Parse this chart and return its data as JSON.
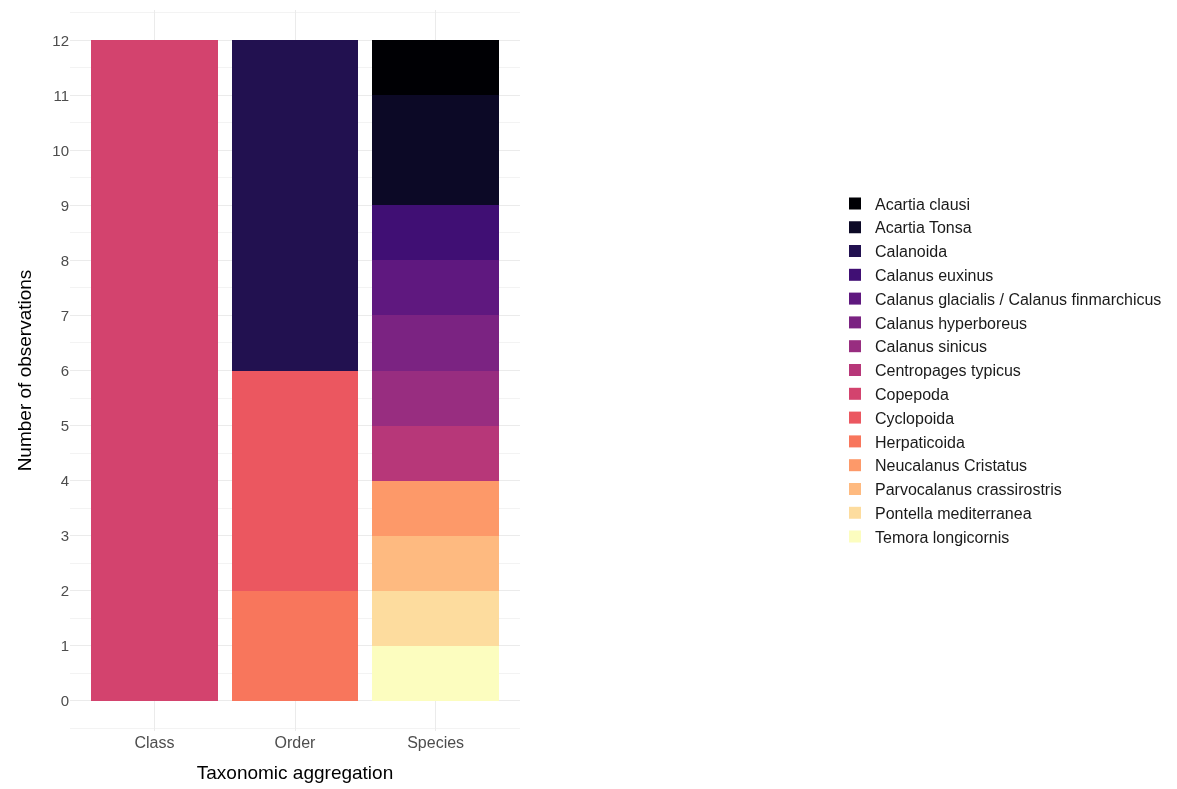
{
  "chart_data": {
    "type": "bar",
    "stacked": true,
    "xlabel": "Taxonomic aggregation",
    "ylabel": "Number of observations",
    "categories": [
      "Class",
      "Order",
      "Species"
    ],
    "ylim": [
      -0.55,
      12.55
    ],
    "yticks": [
      0,
      1,
      2,
      3,
      4,
      5,
      6,
      7,
      8,
      9,
      10,
      11,
      12
    ],
    "grid": true,
    "legend": "right",
    "series": [
      {
        "name": "Temora longicornis",
        "color": "#fcfdbf",
        "values": [
          null,
          null,
          1
        ]
      },
      {
        "name": "Pontella mediterranea",
        "color": "#fddc9e",
        "values": [
          null,
          null,
          1
        ]
      },
      {
        "name": "Parvocalanus crassirostris",
        "color": "#feba80",
        "values": [
          null,
          null,
          1
        ]
      },
      {
        "name": "Neucalanus Cristatus",
        "color": "#fd9969",
        "values": [
          null,
          null,
          1
        ]
      },
      {
        "name": "Herpaticoida",
        "color": "#f8765c",
        "values": [
          null,
          2,
          null
        ]
      },
      {
        "name": "Cyclopoida",
        "color": "#eb5760",
        "values": [
          null,
          4,
          null
        ]
      },
      {
        "name": "Copepoda",
        "color": "#d3436e",
        "values": [
          12,
          null,
          null
        ]
      },
      {
        "name": "Centropages typicus",
        "color": "#b73779",
        "values": [
          null,
          null,
          1
        ]
      },
      {
        "name": "Calanus sinicus",
        "color": "#982d80",
        "values": [
          null,
          null,
          1
        ]
      },
      {
        "name": "Calanus hyperboreus",
        "color": "#7b2382",
        "values": [
          null,
          null,
          1
        ]
      },
      {
        "name": "Calanus glacialis / Calanus finmarchicus",
        "color": "#5f187f",
        "values": [
          null,
          null,
          1
        ]
      },
      {
        "name": "Calanus euxinus",
        "color": "#400f74",
        "values": [
          null,
          null,
          1
        ]
      },
      {
        "name": "Calanoida",
        "color": "#221150",
        "values": [
          null,
          6,
          null
        ]
      },
      {
        "name": "Acartia Tonsa",
        "color": "#0c0926",
        "values": [
          null,
          null,
          2
        ]
      },
      {
        "name": "Acartia clausi",
        "color": "#000004",
        "values": [
          null,
          null,
          1
        ]
      }
    ]
  }
}
